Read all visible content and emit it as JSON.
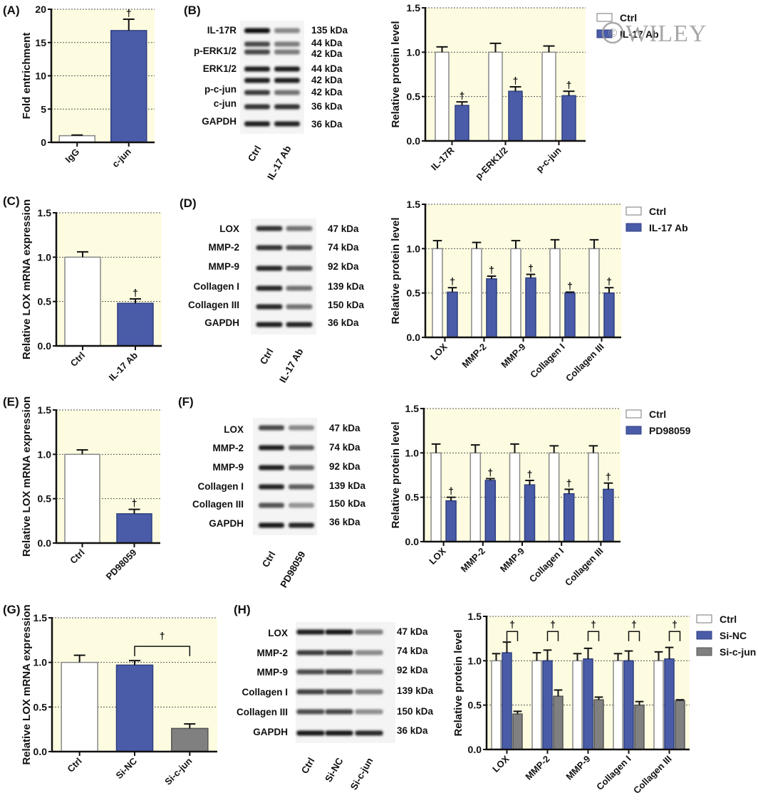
{
  "colors": {
    "plot_background": "#fdfce1",
    "ctrl_fill": "#ffffff",
    "treated_fill": "#4a5ca8",
    "sic_jun_fill": "#808080",
    "axis": "#111111",
    "gridline": "#555555"
  },
  "watermark": {
    "text": "WILEY",
    "symbol": "©"
  },
  "blots": [
    {
      "panel": "(B)",
      "rows": [
        {
          "protein": "IL-17R",
          "kda": [
            "135 kDa"
          ]
        },
        {
          "protein": "p-ERK1/2",
          "kda": [
            "44 kDa",
            "42 kDa"
          ]
        },
        {
          "protein": "ERK1/2",
          "kda": [
            "44 kDa",
            "42 kDa"
          ]
        },
        {
          "protein": "p-c-jun",
          "kda": [
            "42 kDa"
          ]
        },
        {
          "protein": "c-jun",
          "kda": [
            "36 kDa"
          ]
        },
        {
          "protein": "GAPDH",
          "kda": [
            "36 kDa"
          ]
        }
      ],
      "lanes": [
        "Ctrl",
        "IL-17 Ab"
      ]
    },
    {
      "panel": "(D)",
      "rows": [
        {
          "protein": "LOX",
          "kda": [
            "47 kDa"
          ]
        },
        {
          "protein": "MMP-2",
          "kda": [
            "74 kDa"
          ]
        },
        {
          "protein": "MMP-9",
          "kda": [
            "92 kDa"
          ]
        },
        {
          "protein": "Collagen I",
          "kda": [
            "139 kDa"
          ]
        },
        {
          "protein": "Collagen III",
          "kda": [
            "150 kDa"
          ]
        },
        {
          "protein": "GAPDH",
          "kda": [
            "36 kDa"
          ]
        }
      ],
      "lanes": [
        "Ctrl",
        "IL-17 Ab"
      ]
    },
    {
      "panel": "(F)",
      "rows": [
        {
          "protein": "LOX",
          "kda": [
            "47 kDa"
          ]
        },
        {
          "protein": "MMP-2",
          "kda": [
            "74 kDa"
          ]
        },
        {
          "protein": "MMP-9",
          "kda": [
            "92 kDa"
          ]
        },
        {
          "protein": "Collagen I",
          "kda": [
            "139 kDa"
          ]
        },
        {
          "protein": "Collagen III",
          "kda": [
            "150 kDa"
          ]
        },
        {
          "protein": "GAPDH",
          "kda": [
            "36 kDa"
          ]
        }
      ],
      "lanes": [
        "Ctrl",
        "PD98059"
      ]
    },
    {
      "panel": "(H)",
      "rows": [
        {
          "protein": "LOX",
          "kda": [
            "47 kDa"
          ]
        },
        {
          "protein": "MMP-2",
          "kda": [
            "74 kDa"
          ]
        },
        {
          "protein": "MMP-9",
          "kda": [
            "92 kDa"
          ]
        },
        {
          "protein": "Collagen I",
          "kda": [
            "139 kDa"
          ]
        },
        {
          "protein": "Collagen III",
          "kda": [
            "150 kDa"
          ]
        },
        {
          "protein": "GAPDH",
          "kda": [
            "36 kDa"
          ]
        }
      ],
      "lanes": [
        "Ctrl",
        "Si-NC",
        "Si-c-jun"
      ]
    }
  ],
  "chart_data": [
    {
      "id": "A",
      "panel": "(A)",
      "type": "bar",
      "title": "",
      "xlabel": "",
      "ylabel": "Fold entrichment",
      "ylim": [
        0,
        20
      ],
      "yticks": [
        "0",
        "5",
        "10",
        "15",
        "20"
      ],
      "grid": true,
      "categories": [
        "IgG",
        "c-jun"
      ],
      "series": [
        {
          "name": "",
          "values": [
            1.0,
            16.8
          ],
          "errors": [
            0.1,
            1.7
          ],
          "colors": [
            "ctrl",
            "treated"
          ],
          "significance": [
            false,
            true
          ]
        }
      ],
      "legend": null,
      "significance_mark": "†"
    },
    {
      "id": "B",
      "panel": "(B)",
      "type": "bar",
      "xlabel": "",
      "ylabel": "Relative protein level",
      "ylim": [
        0,
        1.5
      ],
      "yticks": [
        "0.0",
        "0.5",
        "1.0",
        "1.5"
      ],
      "grid": true,
      "categories": [
        "IL-17R",
        "p-ERK1/2",
        "p-c-jun"
      ],
      "series": [
        {
          "name": "Ctrl",
          "color": "ctrl",
          "values": [
            1.0,
            1.0,
            1.0
          ],
          "errors": [
            0.06,
            0.1,
            0.07
          ],
          "significance": [
            false,
            false,
            false
          ]
        },
        {
          "name": "IL-17 Ab",
          "color": "treated",
          "values": [
            0.4,
            0.56,
            0.51
          ],
          "errors": [
            0.04,
            0.05,
            0.05
          ],
          "significance": [
            true,
            true,
            true
          ]
        }
      ],
      "legend": "top-right-outside",
      "significance_mark": "†"
    },
    {
      "id": "C",
      "panel": "(C)",
      "type": "bar",
      "xlabel": "",
      "ylabel": "Relative LOX mRNA expression",
      "ylim": [
        0,
        1.5
      ],
      "yticks": [
        "0.0",
        "0.5",
        "1.0",
        "1.5"
      ],
      "grid": true,
      "categories": [
        "Ctrl",
        "IL-17 Ab"
      ],
      "series": [
        {
          "name": "",
          "values": [
            1.0,
            0.48
          ],
          "errors": [
            0.06,
            0.05
          ],
          "colors": [
            "ctrl",
            "treated"
          ],
          "significance": [
            false,
            true
          ]
        }
      ],
      "legend": null,
      "significance_mark": "†"
    },
    {
      "id": "D",
      "panel": "(D)",
      "type": "bar",
      "xlabel": "",
      "ylabel": "Relative protein level",
      "ylim": [
        0,
        1.5
      ],
      "yticks": [
        "0.0",
        "0.5",
        "1.0",
        "1.5"
      ],
      "grid": true,
      "categories": [
        "LOX",
        "MMP-2",
        "MMP-9",
        "Collagen I",
        "Collagen III"
      ],
      "series": [
        {
          "name": "Ctrl",
          "color": "ctrl",
          "values": [
            1.0,
            1.0,
            1.0,
            1.0,
            1.0
          ],
          "errors": [
            0.09,
            0.07,
            0.09,
            0.1,
            0.1
          ],
          "significance": [
            false,
            false,
            false,
            false,
            false
          ]
        },
        {
          "name": "IL-17 Ab",
          "color": "treated",
          "values": [
            0.51,
            0.66,
            0.67,
            0.5,
            0.5
          ],
          "errors": [
            0.05,
            0.03,
            0.04,
            0.01,
            0.06
          ],
          "significance": [
            true,
            true,
            true,
            true,
            true
          ]
        }
      ],
      "legend": "top-right-outside",
      "significance_mark": "†"
    },
    {
      "id": "E",
      "panel": "(E)",
      "type": "bar",
      "xlabel": "",
      "ylabel": "Relative LOX mRNA expression",
      "ylim": [
        0,
        1.5
      ],
      "yticks": [
        "0.0",
        "0.5",
        "1.0",
        "1.5"
      ],
      "grid": true,
      "categories": [
        "Ctrl",
        "PD98059"
      ],
      "series": [
        {
          "name": "",
          "values": [
            1.0,
            0.33
          ],
          "errors": [
            0.05,
            0.05
          ],
          "colors": [
            "ctrl",
            "treated"
          ],
          "significance": [
            false,
            true
          ]
        }
      ],
      "legend": null,
      "significance_mark": "†"
    },
    {
      "id": "F",
      "panel": "(F)",
      "type": "bar",
      "xlabel": "",
      "ylabel": "Relative protein level",
      "ylim": [
        0,
        1.5
      ],
      "yticks": [
        "0.0",
        "0.5",
        "1.0",
        "1.5"
      ],
      "grid": true,
      "categories": [
        "LOX",
        "MMP-2",
        "MMP-9",
        "Collagen I",
        "Collagen III"
      ],
      "series": [
        {
          "name": "Ctrl",
          "color": "ctrl",
          "values": [
            1.0,
            1.0,
            1.0,
            1.0,
            1.0
          ],
          "errors": [
            0.1,
            0.09,
            0.1,
            0.08,
            0.08
          ],
          "significance": [
            false,
            false,
            false,
            false,
            false
          ]
        },
        {
          "name": "PD98059",
          "color": "treated",
          "values": [
            0.46,
            0.69,
            0.64,
            0.54,
            0.59
          ],
          "errors": [
            0.04,
            0.02,
            0.05,
            0.05,
            0.07
          ],
          "significance": [
            true,
            true,
            true,
            true,
            true
          ]
        }
      ],
      "legend": "top-right-outside",
      "significance_mark": "†"
    },
    {
      "id": "G",
      "panel": "(G)",
      "type": "bar",
      "xlabel": "",
      "ylabel": "Relative LOX mRNA expression",
      "ylim": [
        0,
        1.5
      ],
      "yticks": [
        "0.0",
        "0.5",
        "1.0",
        "1.5"
      ],
      "grid": true,
      "categories": [
        "Ctrl",
        "Si-NC",
        "Si-c-jun"
      ],
      "series": [
        {
          "name": "",
          "values": [
            1.0,
            0.97,
            0.26
          ],
          "errors": [
            0.08,
            0.05,
            0.05
          ],
          "colors": [
            "ctrl",
            "treated",
            "grey"
          ],
          "significance": [
            false,
            false,
            false
          ]
        }
      ],
      "brackets": [
        {
          "from": 1,
          "to": 2,
          "mark": "†"
        }
      ],
      "legend": null,
      "significance_mark": "†"
    },
    {
      "id": "H",
      "panel": "",
      "type": "bar",
      "xlabel": "",
      "ylabel": "Relative protein level",
      "ylim": [
        0,
        1.5
      ],
      "yticks": [
        "0.0",
        "0.5",
        "1.0",
        "1.5"
      ],
      "grid": true,
      "categories": [
        "LOX",
        "MMP-2",
        "MMP-9",
        "Collagen I",
        "Collagen III"
      ],
      "series": [
        {
          "name": "Ctrl",
          "color": "ctrl",
          "values": [
            1.0,
            1.0,
            1.0,
            1.0,
            1.0
          ],
          "errors": [
            0.08,
            0.09,
            0.08,
            0.08,
            0.1
          ],
          "significance": [
            false,
            false,
            false,
            false,
            false
          ]
        },
        {
          "name": "Si-NC",
          "color": "treated",
          "values": [
            1.09,
            1.0,
            1.02,
            1.0,
            1.02
          ],
          "errors": [
            0.12,
            0.12,
            0.12,
            0.11,
            0.13
          ],
          "significance": [
            false,
            false,
            false,
            false,
            false
          ]
        },
        {
          "name": "Si-c-jun",
          "color": "grey",
          "values": [
            0.4,
            0.6,
            0.56,
            0.5,
            0.55
          ],
          "errors": [
            0.03,
            0.07,
            0.03,
            0.04,
            0.01
          ],
          "significance": [
            false,
            false,
            false,
            false,
            false
          ]
        }
      ],
      "brackets_per_category": {
        "from_series": 1,
        "to_series": 2,
        "mark": "†"
      },
      "legend": "top-right-outside",
      "significance_mark": "†"
    }
  ]
}
